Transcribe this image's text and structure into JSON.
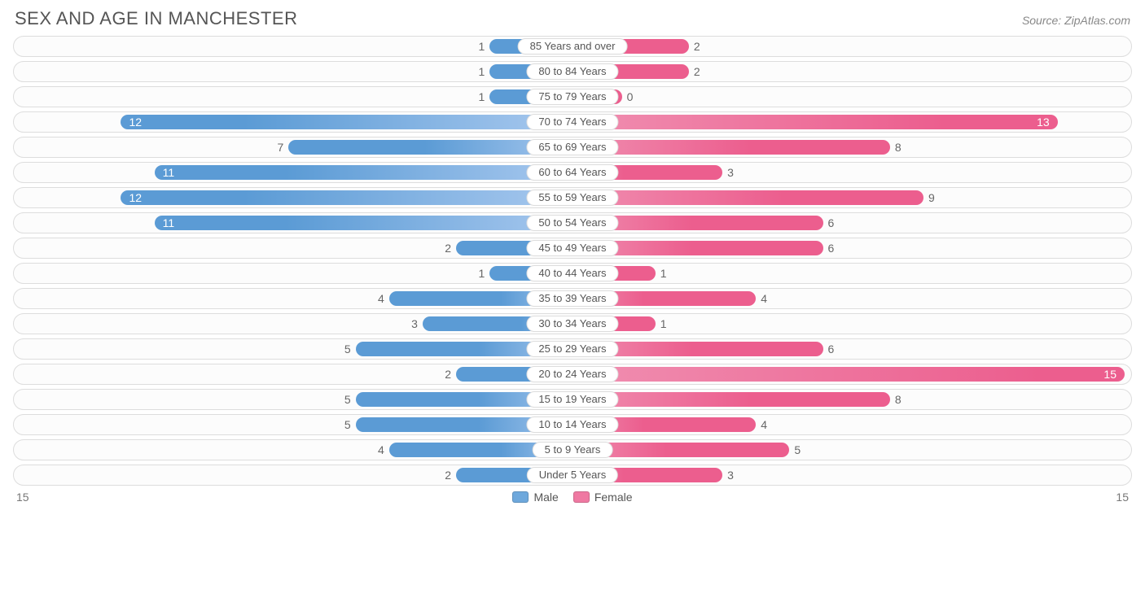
{
  "title": "SEX AND AGE IN MANCHESTER",
  "source": "Source: ZipAtlas.com",
  "chart": {
    "type": "population-pyramid",
    "axis_max": 15,
    "axis_left_label": "15",
    "axis_right_label": "15",
    "background_color": "#ffffff",
    "track_border_color": "#dddddd",
    "track_bg_color": "#fcfcfc",
    "title_color": "#555555",
    "title_fontsize": 22,
    "source_color": "#888888",
    "label_fontsize": 14,
    "value_inside_threshold": 10,
    "male_gradient": [
      "#a9c9ef",
      "#5b9bd5"
    ],
    "female_gradient": [
      "#f08fb1",
      "#ec5e8e"
    ],
    "legend": [
      {
        "label": "Male",
        "color": "#6ea8dc"
      },
      {
        "label": "Female",
        "color": "#ef79a2"
      }
    ],
    "rows": [
      {
        "category": "85 Years and over",
        "male": 1,
        "female": 2
      },
      {
        "category": "80 to 84 Years",
        "male": 1,
        "female": 2
      },
      {
        "category": "75 to 79 Years",
        "male": 1,
        "female": 0
      },
      {
        "category": "70 to 74 Years",
        "male": 12,
        "female": 13
      },
      {
        "category": "65 to 69 Years",
        "male": 7,
        "female": 8
      },
      {
        "category": "60 to 64 Years",
        "male": 11,
        "female": 3
      },
      {
        "category": "55 to 59 Years",
        "male": 12,
        "female": 9
      },
      {
        "category": "50 to 54 Years",
        "male": 11,
        "female": 6
      },
      {
        "category": "45 to 49 Years",
        "male": 2,
        "female": 6
      },
      {
        "category": "40 to 44 Years",
        "male": 1,
        "female": 1
      },
      {
        "category": "35 to 39 Years",
        "male": 4,
        "female": 4
      },
      {
        "category": "30 to 34 Years",
        "male": 3,
        "female": 1
      },
      {
        "category": "25 to 29 Years",
        "male": 5,
        "female": 6
      },
      {
        "category": "20 to 24 Years",
        "male": 2,
        "female": 15
      },
      {
        "category": "15 to 19 Years",
        "male": 5,
        "female": 8
      },
      {
        "category": "10 to 14 Years",
        "male": 5,
        "female": 4
      },
      {
        "category": "5 to 9 Years",
        "male": 4,
        "female": 5
      },
      {
        "category": "Under 5 Years",
        "male": 2,
        "female": 3
      }
    ]
  }
}
